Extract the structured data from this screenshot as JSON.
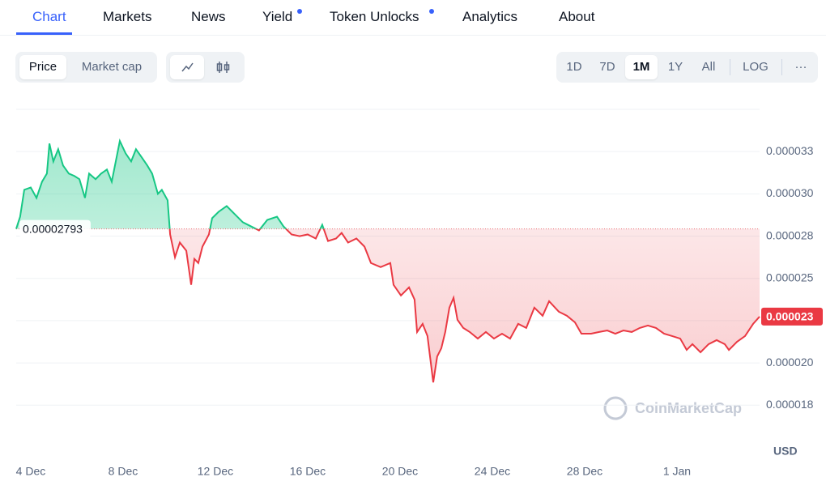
{
  "tabs": [
    "Chart",
    "Markets",
    "News",
    "Yield",
    "Token Unlocks",
    "Analytics",
    "About"
  ],
  "toggles": [
    "Price",
    "Market cap"
  ],
  "ranges": [
    "1D",
    "7D",
    "1M",
    "1Y",
    "All"
  ],
  "log_button": "LOG",
  "more_button": "···",
  "chart_data": {
    "type": "line",
    "up_color": "#16c784",
    "down_color": "#ea3943",
    "reference": 2.793e-05,
    "current_price": {
      "value": 2.274e-05,
      "label": "0.000023"
    },
    "y_axis_label": "USD",
    "watermark": "CoinMarketCap",
    "grid": true,
    "xlim": [
      3.37,
      35.58
    ],
    "xticks": [
      {
        "value": 4,
        "label": "4 Dec"
      },
      {
        "value": 8,
        "label": "8 Dec"
      },
      {
        "value": 12,
        "label": "12 Dec"
      },
      {
        "value": 16,
        "label": "16 Dec"
      },
      {
        "value": 20,
        "label": "20 Dec"
      },
      {
        "value": 24,
        "label": "24 Dec"
      },
      {
        "value": 28,
        "label": "28 Dec"
      },
      {
        "value": 32,
        "label": "1 Jan"
      }
    ],
    "ylim": [
      1.44e-05,
      3.5e-05
    ],
    "yticks": [
      {
        "value": 1.75e-05,
        "label": "0.000018"
      },
      {
        "value": 2e-05,
        "label": "0.000020"
      },
      {
        "value": 2.25e-05,
        "label": "0.000023"
      },
      {
        "value": 2.5e-05,
        "label": "0.000025"
      },
      {
        "value": 2.75e-05,
        "label": "0.000028"
      },
      {
        "value": 3e-05,
        "label": "0.000030"
      },
      {
        "value": 3.25e-05,
        "label": "0.000033"
      }
    ],
    "x": [
      3.37,
      3.54,
      3.72,
      4.0,
      4.25,
      4.49,
      4.7,
      4.81,
      4.98,
      5.19,
      5.4,
      5.65,
      5.89,
      6.11,
      6.35,
      6.53,
      6.81,
      7.05,
      7.3,
      7.51,
      7.86,
      8.11,
      8.35,
      8.56,
      8.81,
      9.05,
      9.26,
      9.51,
      9.68,
      9.93,
      10.04,
      10.25,
      10.46,
      10.74,
      10.95,
      11.09,
      11.26,
      11.44,
      11.72,
      11.86,
      12.14,
      12.49,
      12.84,
      13.19,
      13.54,
      13.89,
      14.25,
      14.67,
      14.95,
      15.3,
      15.65,
      16.0,
      16.35,
      16.63,
      16.88,
      17.23,
      17.47,
      17.75,
      18.11,
      18.46,
      18.74,
      19.16,
      19.58,
      19.72,
      20.04,
      20.39,
      20.63,
      20.74,
      20.98,
      21.19,
      21.44,
      21.61,
      21.79,
      21.96,
      22.14,
      22.32,
      22.49,
      22.74,
      23.02,
      23.37,
      23.72,
      24.07,
      24.42,
      24.77,
      25.12,
      25.47,
      25.82,
      26.18,
      26.46,
      26.88,
      27.23,
      27.58,
      27.86,
      28.28,
      28.63,
      28.98,
      29.33,
      29.68,
      30.04,
      30.39,
      30.74,
      31.09,
      31.44,
      31.79,
      32.14,
      32.42,
      32.67,
      33.02,
      33.37,
      33.72,
      34.07,
      34.25,
      34.6,
      34.95,
      35.3,
      35.58
    ],
    "values": [
      2.793e-05,
      2.865e-05,
      3.024e-05,
      3.038e-05,
      2.976e-05,
      3.072e-05,
      3.12e-05,
      3.298e-05,
      3.192e-05,
      3.264e-05,
      3.168e-05,
      3.12e-05,
      3.106e-05,
      3.087e-05,
      2.976e-05,
      3.12e-05,
      3.087e-05,
      3.12e-05,
      3.144e-05,
      3.072e-05,
      3.313e-05,
      3.24e-05,
      3.192e-05,
      3.264e-05,
      3.216e-05,
      3.168e-05,
      3.12e-05,
      3e-05,
      3.024e-05,
      2.962e-05,
      2.76e-05,
      2.625e-05,
      2.712e-05,
      2.664e-05,
      2.462e-05,
      2.615e-05,
      2.591e-05,
      2.688e-05,
      2.76e-05,
      2.856e-05,
      2.894e-05,
      2.928e-05,
      2.88e-05,
      2.832e-05,
      2.808e-05,
      2.784e-05,
      2.846e-05,
      2.865e-05,
      2.808e-05,
      2.76e-05,
      2.75e-05,
      2.76e-05,
      2.736e-05,
      2.817e-05,
      2.721e-05,
      2.736e-05,
      2.769e-05,
      2.712e-05,
      2.736e-05,
      2.688e-05,
      2.591e-05,
      2.567e-05,
      2.591e-05,
      2.462e-05,
      2.399e-05,
      2.447e-05,
      2.375e-05,
      2.183e-05,
      2.231e-05,
      2.159e-05,
      1.885e-05,
      2.038e-05,
      2.087e-05,
      2.183e-05,
      2.327e-05,
      2.385e-05,
      2.255e-05,
      2.207e-05,
      2.183e-05,
      2.144e-05,
      2.183e-05,
      2.144e-05,
      2.173e-05,
      2.144e-05,
      2.231e-05,
      2.207e-05,
      2.327e-05,
      2.279e-05,
      2.365e-05,
      2.303e-05,
      2.279e-05,
      2.24e-05,
      2.173e-05,
      2.173e-05,
      2.183e-05,
      2.192e-05,
      2.173e-05,
      2.192e-05,
      2.183e-05,
      2.207e-05,
      2.221e-05,
      2.207e-05,
      2.173e-05,
      2.159e-05,
      2.144e-05,
      2.077e-05,
      2.111e-05,
      2.063e-05,
      2.111e-05,
      2.135e-05,
      2.111e-05,
      2.077e-05,
      2.125e-05,
      2.159e-05,
      2.231e-05,
      2.274e-05
    ]
  }
}
